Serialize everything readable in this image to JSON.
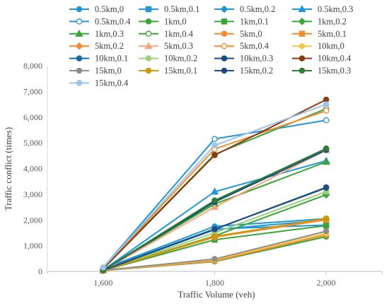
{
  "chart_data": {
    "type": "line",
    "title": "",
    "xlabel": "Traffic Volume (veh)",
    "ylabel": "Traffic conflict (times)",
    "x": [
      1600,
      1800,
      2000
    ],
    "x_tick_labels": [
      "1,600",
      "1,800",
      "2,000"
    ],
    "xlim": [
      1500,
      2100
    ],
    "ylim": [
      0,
      8000
    ],
    "y_tick_labels": [
      "0",
      "1,000",
      "2,000",
      "3,000",
      "4,000",
      "5,000",
      "6,000",
      "7,000",
      "8,000"
    ],
    "grid": false,
    "legend_position": "top",
    "series": [
      {
        "name": "0.5km,0",
        "color": "#2196d6",
        "marker": "circle",
        "fill": true,
        "values": [
          100,
          1750,
          2050
        ]
      },
      {
        "name": "0.5km,0.1",
        "color": "#2196d6",
        "marker": "square",
        "fill": true,
        "values": [
          80,
          1650,
          1800
        ]
      },
      {
        "name": "0.5km,0.2",
        "color": "#2196d6",
        "marker": "diamond",
        "fill": true,
        "values": [
          60,
          1620,
          2000
        ]
      },
      {
        "name": "0.5km,0.3",
        "color": "#2196d6",
        "marker": "triangle",
        "fill": true,
        "values": [
          50,
          3100,
          4300
        ]
      },
      {
        "name": "0.5km,0.4",
        "color": "#2196d6",
        "marker": "circle",
        "fill": false,
        "values": [
          150,
          5150,
          5880
        ]
      },
      {
        "name": "1km,0",
        "color": "#3aa63a",
        "marker": "circle",
        "fill": true,
        "values": [
          30,
          380,
          1350
        ]
      },
      {
        "name": "1km,0.1",
        "color": "#3aa63a",
        "marker": "square",
        "fill": true,
        "values": [
          30,
          1230,
          1780
        ]
      },
      {
        "name": "1km,0.2",
        "color": "#3aa63a",
        "marker": "diamond",
        "fill": true,
        "values": [
          40,
          1380,
          2980
        ]
      },
      {
        "name": "1km,0.3",
        "color": "#3aa63a",
        "marker": "triangle",
        "fill": true,
        "values": [
          40,
          2620,
          4260
        ]
      },
      {
        "name": "1km,0.4",
        "color": "#3aa63a",
        "marker": "circle",
        "fill": false,
        "values": [
          120,
          4550,
          6330
        ]
      },
      {
        "name": "5km,0",
        "color": "#f4892f",
        "marker": "circle",
        "fill": true,
        "values": [
          30,
          400,
          1420
        ]
      },
      {
        "name": "5km,0.1",
        "color": "#f4892f",
        "marker": "square",
        "fill": true,
        "values": [
          30,
          1350,
          2010
        ]
      },
      {
        "name": "5km,0.2",
        "color": "#f4892f",
        "marker": "diamond",
        "fill": true,
        "values": [
          40,
          1330,
          2010
        ]
      },
      {
        "name": "5km,0.3",
        "color": "#f4a77a",
        "marker": "triangle",
        "fill": true,
        "values": [
          40,
          2500,
          4720
        ]
      },
      {
        "name": "5km,0.4",
        "color": "#f4892f",
        "marker": "circle",
        "fill": false,
        "values": [
          130,
          4760,
          6250
        ]
      },
      {
        "name": "10km,0",
        "color": "#f6c944",
        "marker": "circle",
        "fill": true,
        "values": [
          30,
          450,
          1480
        ]
      },
      {
        "name": "10km,0.1",
        "color": "#1766a8",
        "marker": "circle",
        "fill": true,
        "values": [
          40,
          1640,
          3270
        ]
      },
      {
        "name": "10km,0.2",
        "color": "#9ccf7c",
        "marker": "circle",
        "fill": true,
        "values": [
          40,
          1500,
          3100
        ]
      },
      {
        "name": "10km,0.3",
        "color": "#174d7d",
        "marker": "circle",
        "fill": true,
        "values": [
          40,
          2700,
          4720
        ]
      },
      {
        "name": "10km,0.4",
        "color": "#8b3a10",
        "marker": "circle",
        "fill": true,
        "values": [
          100,
          4520,
          6680
        ]
      },
      {
        "name": "15km,0",
        "color": "#8c8c8c",
        "marker": "circle",
        "fill": true,
        "values": [
          40,
          480,
          1560
        ]
      },
      {
        "name": "15km,0.1",
        "color": "#c99a0a",
        "marker": "circle",
        "fill": true,
        "values": [
          40,
          1360,
          2060
        ]
      },
      {
        "name": "15km,0.2",
        "color": "#1f4c7c",
        "marker": "circle",
        "fill": true,
        "values": [
          40,
          1640,
          3250
        ]
      },
      {
        "name": "15km,0.3",
        "color": "#2e7d32",
        "marker": "circle",
        "fill": true,
        "values": [
          50,
          2760,
          4780
        ]
      },
      {
        "name": "15km,0.4",
        "color": "#9dc3e6",
        "marker": "circle",
        "fill": true,
        "values": [
          150,
          4900,
          6500
        ]
      }
    ]
  }
}
